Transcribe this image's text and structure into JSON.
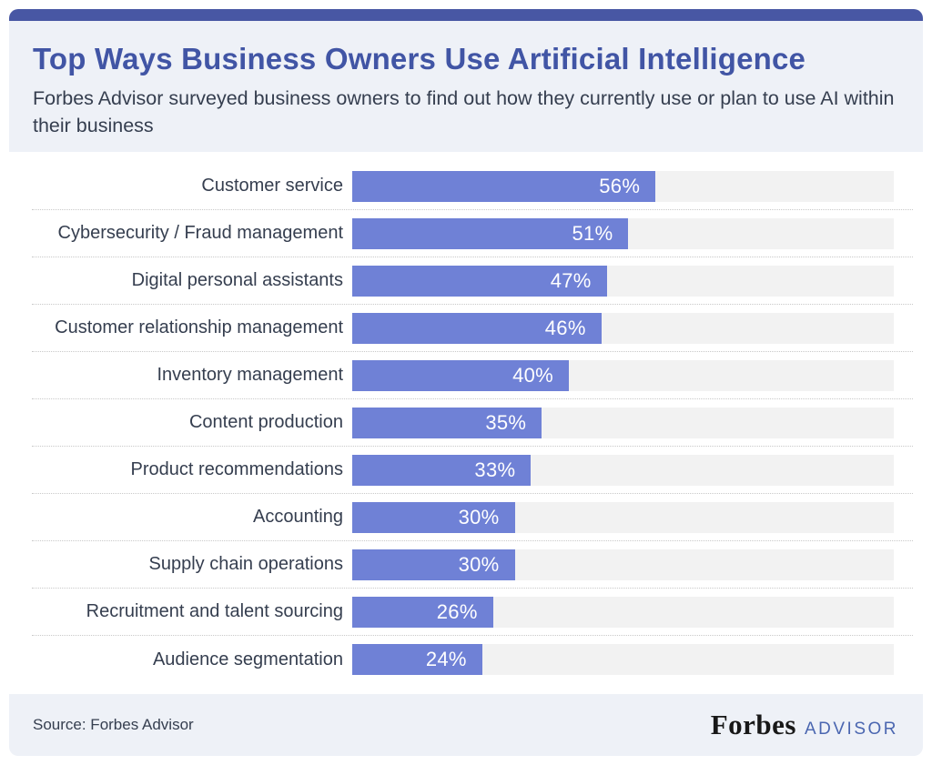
{
  "header": {
    "title": "Top Ways Business Owners Use Artificial Intelligence",
    "subtitle": "Forbes Advisor surveyed business owners to find out how they currently use or plan to use AI within their business"
  },
  "chart_data": {
    "type": "bar",
    "orientation": "horizontal",
    "title": "Top Ways Business Owners Use Artificial Intelligence",
    "categories": [
      "Customer service",
      "Cybersecurity / Fraud management",
      "Digital personal assistants",
      "Customer relationship management",
      "Inventory management",
      "Content production",
      "Product recommendations",
      "Accounting",
      "Supply chain operations",
      "Recruitment and talent sourcing",
      "Audience segmentation"
    ],
    "values": [
      56,
      51,
      47,
      46,
      40,
      35,
      33,
      30,
      30,
      26,
      24
    ],
    "value_suffix": "%",
    "xlim": [
      0,
      100
    ],
    "xlabel": "",
    "ylabel": "",
    "legend": "none",
    "grid": "dotted row separators",
    "value_label_position": "inside-right"
  },
  "footer": {
    "source": "Source: Forbes Advisor",
    "brand_name": "Forbes",
    "brand_suffix": "ADVISOR"
  },
  "colors": {
    "top_strip": "#4857a4",
    "panel_bg": "#eef1f7",
    "title_text": "#4155a5",
    "body_text": "#353e4f",
    "bar_fill": "#6f81d6",
    "bar_track": "#f2f2f2",
    "value_text": "#ffffff",
    "advisor_text": "#4a66b0",
    "forbes_text": "#181818"
  }
}
